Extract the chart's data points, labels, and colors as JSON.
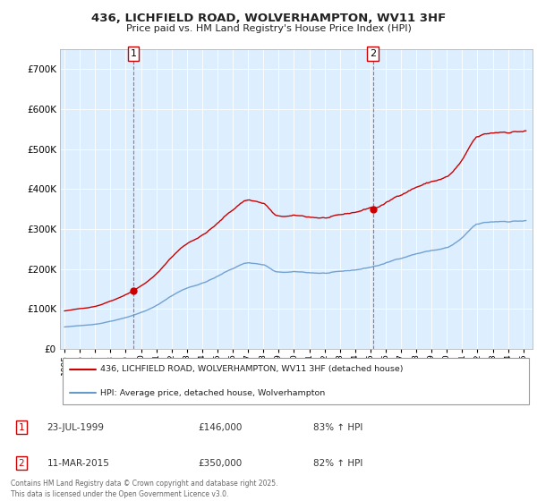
{
  "title_line1": "436, LICHFIELD ROAD, WOLVERHAMPTON, WV11 3HF",
  "title_line2": "Price paid vs. HM Land Registry's House Price Index (HPI)",
  "background_color": "#ffffff",
  "plot_background": "#ddeeff",
  "grid_color": "#ffffff",
  "red_line_color": "#cc0000",
  "blue_line_color": "#6699cc",
  "annotation1": "23-JUL-1999",
  "annotation1_price": "£146,000",
  "annotation1_hpi": "83% ↑ HPI",
  "annotation2": "11-MAR-2015",
  "annotation2_price": "£350,000",
  "annotation2_hpi": "82% ↑ HPI",
  "legend_red": "436, LICHFIELD ROAD, WOLVERHAMPTON, WV11 3HF (detached house)",
  "legend_blue": "HPI: Average price, detached house, Wolverhampton",
  "footer": "Contains HM Land Registry data © Crown copyright and database right 2025.\nThis data is licensed under the Open Government Licence v3.0.",
  "ylim_max": 750000,
  "ylim_min": 0,
  "ytick_labels": [
    "£0",
    "£100K",
    "£200K",
    "£300K",
    "£400K",
    "£500K",
    "£600K",
    "£700K"
  ],
  "ytick_values": [
    0,
    100000,
    200000,
    300000,
    400000,
    500000,
    600000,
    700000
  ]
}
